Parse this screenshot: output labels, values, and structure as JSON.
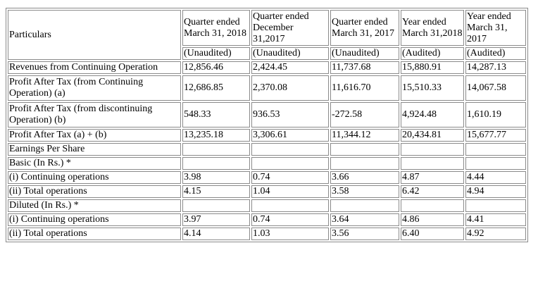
{
  "table": {
    "particulars_label": "Particulars",
    "columns": [
      {
        "heading": "Quarter ended\nMarch 31,\n2018",
        "status": "(Unaudited)"
      },
      {
        "heading": "Quarter ended\nDecember\n31,2017",
        "status": "(Unaudited)"
      },
      {
        "heading": "Quarter ended\nMarch 31,\n2017",
        "status": "(Unaudited)"
      },
      {
        "heading": "Year ended\nMarch\n31,2018",
        "status": "(Audited)"
      },
      {
        "heading": "Year ended\nMarch 31,\n2017",
        "status": "(Audited)"
      }
    ],
    "rows": [
      {
        "label": "Revenues from Continuing Operation",
        "values": [
          "12,856.46",
          "2,424.45",
          "11,737.68",
          "15,880.91",
          "14,287.13"
        ]
      },
      {
        "label": "Profit After Tax (from Continuing Operation) (a)",
        "values": [
          "12,686.85",
          "2,370.08",
          "11,616.70",
          "15,510.33",
          "14,067.58"
        ]
      },
      {
        "label": "Profit After Tax (from discontinuing Operation) (b)",
        "values": [
          "548.33",
          "936.53",
          "-272.58",
          "4,924.48",
          "1,610.19"
        ]
      },
      {
        "label": "Profit After Tax (a) + (b)",
        "values": [
          "13,235.18",
          "3,306.61",
          "11,344.12",
          "20,434.81",
          "15,677.77"
        ]
      },
      {
        "label": "Earnings Per Share",
        "values": [
          "",
          "",
          "",
          "",
          ""
        ]
      },
      {
        "label": "Basic (In Rs.) *",
        "values": [
          "",
          "",
          "",
          "",
          ""
        ]
      },
      {
        "label": "(i) Continuing operations",
        "values": [
          "3.98",
          "0.74",
          "3.66",
          "4.87",
          "4.44"
        ]
      },
      {
        "label": "(ii) Total operations",
        "values": [
          "4.15",
          "1.04",
          "3.58",
          "6.42",
          "4.94"
        ]
      },
      {
        "label": "Diluted (In Rs.) *",
        "values": [
          "",
          "",
          "",
          "",
          ""
        ]
      },
      {
        "label": "(i) Continuing operations",
        "values": [
          "3.97",
          "0.74",
          "3.64",
          "4.86",
          "4.41"
        ]
      },
      {
        "label": "(ii) Total operations",
        "values": [
          "4.14",
          "1.03",
          "3.56",
          "6.40",
          "4.92"
        ]
      }
    ]
  }
}
